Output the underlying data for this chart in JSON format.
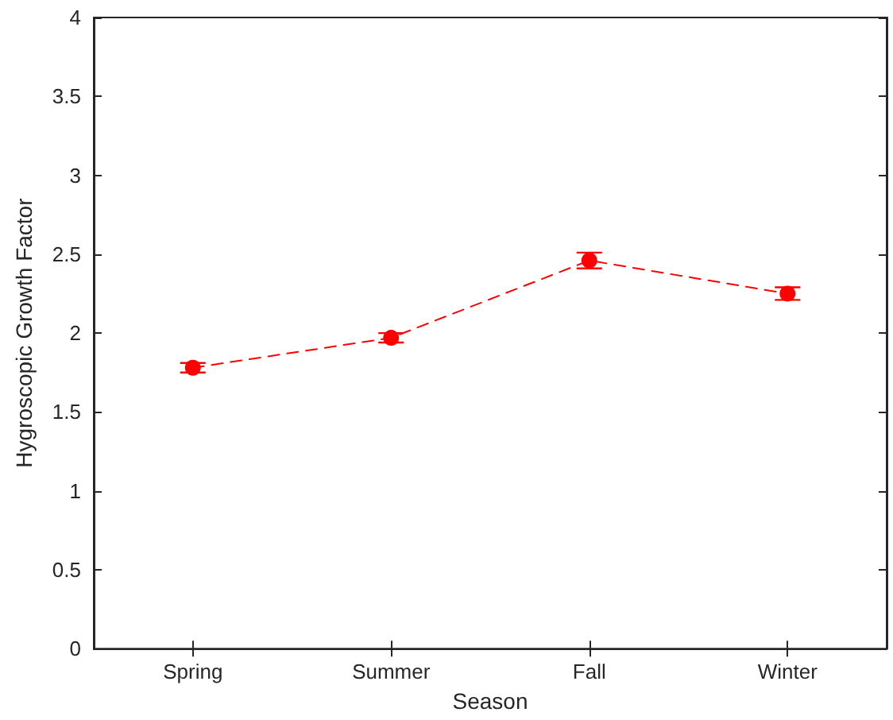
{
  "chart_data": {
    "type": "line",
    "xlabel": "Season",
    "ylabel": "Hygroscopic Growth Factor",
    "categories": [
      "Spring",
      "Summer",
      "Fall",
      "Winter"
    ],
    "series": [
      {
        "color": "#ff0000",
        "values": [
          1.78,
          1.97,
          2.46,
          2.25
        ],
        "errors": [
          0.03,
          0.03,
          0.05,
          0.04
        ]
      }
    ],
    "ylim": [
      0,
      4
    ],
    "yticks": [
      0,
      0.5,
      1,
      1.5,
      2,
      2.5,
      3,
      3.5,
      4
    ],
    "marker": "circle",
    "line_style": "dashed"
  }
}
